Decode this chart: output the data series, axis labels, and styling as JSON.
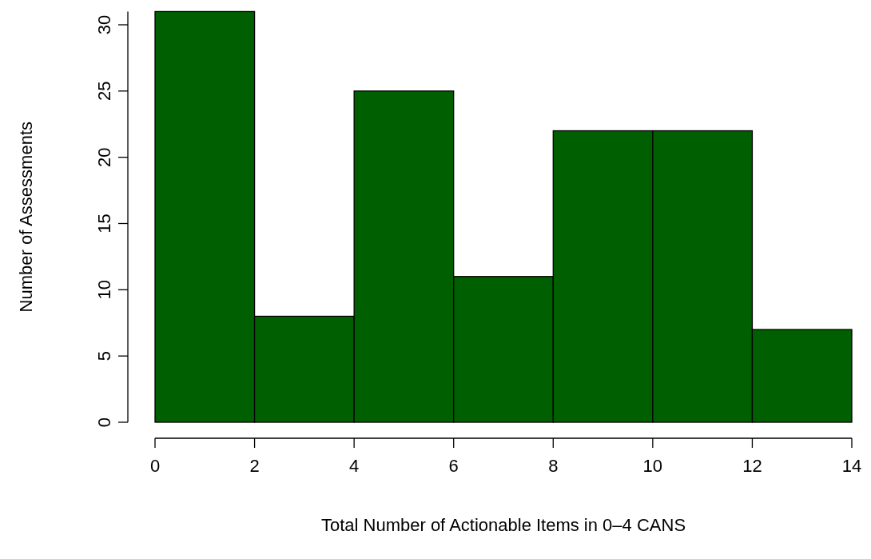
{
  "chart_data": {
    "type": "histogram",
    "xlabel": "Total Number of Actionable Items in 0–4 CANS",
    "ylabel": "Number of Assessments",
    "bins": [
      0,
      2,
      4,
      6,
      8,
      10,
      12,
      14
    ],
    "values": [
      31,
      8,
      25,
      11,
      22,
      22,
      7
    ],
    "color": "#005f00",
    "xlim": [
      0,
      14
    ],
    "ylim": [
      0,
      31
    ],
    "xticks": [
      0,
      2,
      4,
      6,
      8,
      10,
      12,
      14
    ],
    "yticks": [
      0,
      5,
      10,
      15,
      20,
      25,
      30
    ],
    "grid": false
  }
}
